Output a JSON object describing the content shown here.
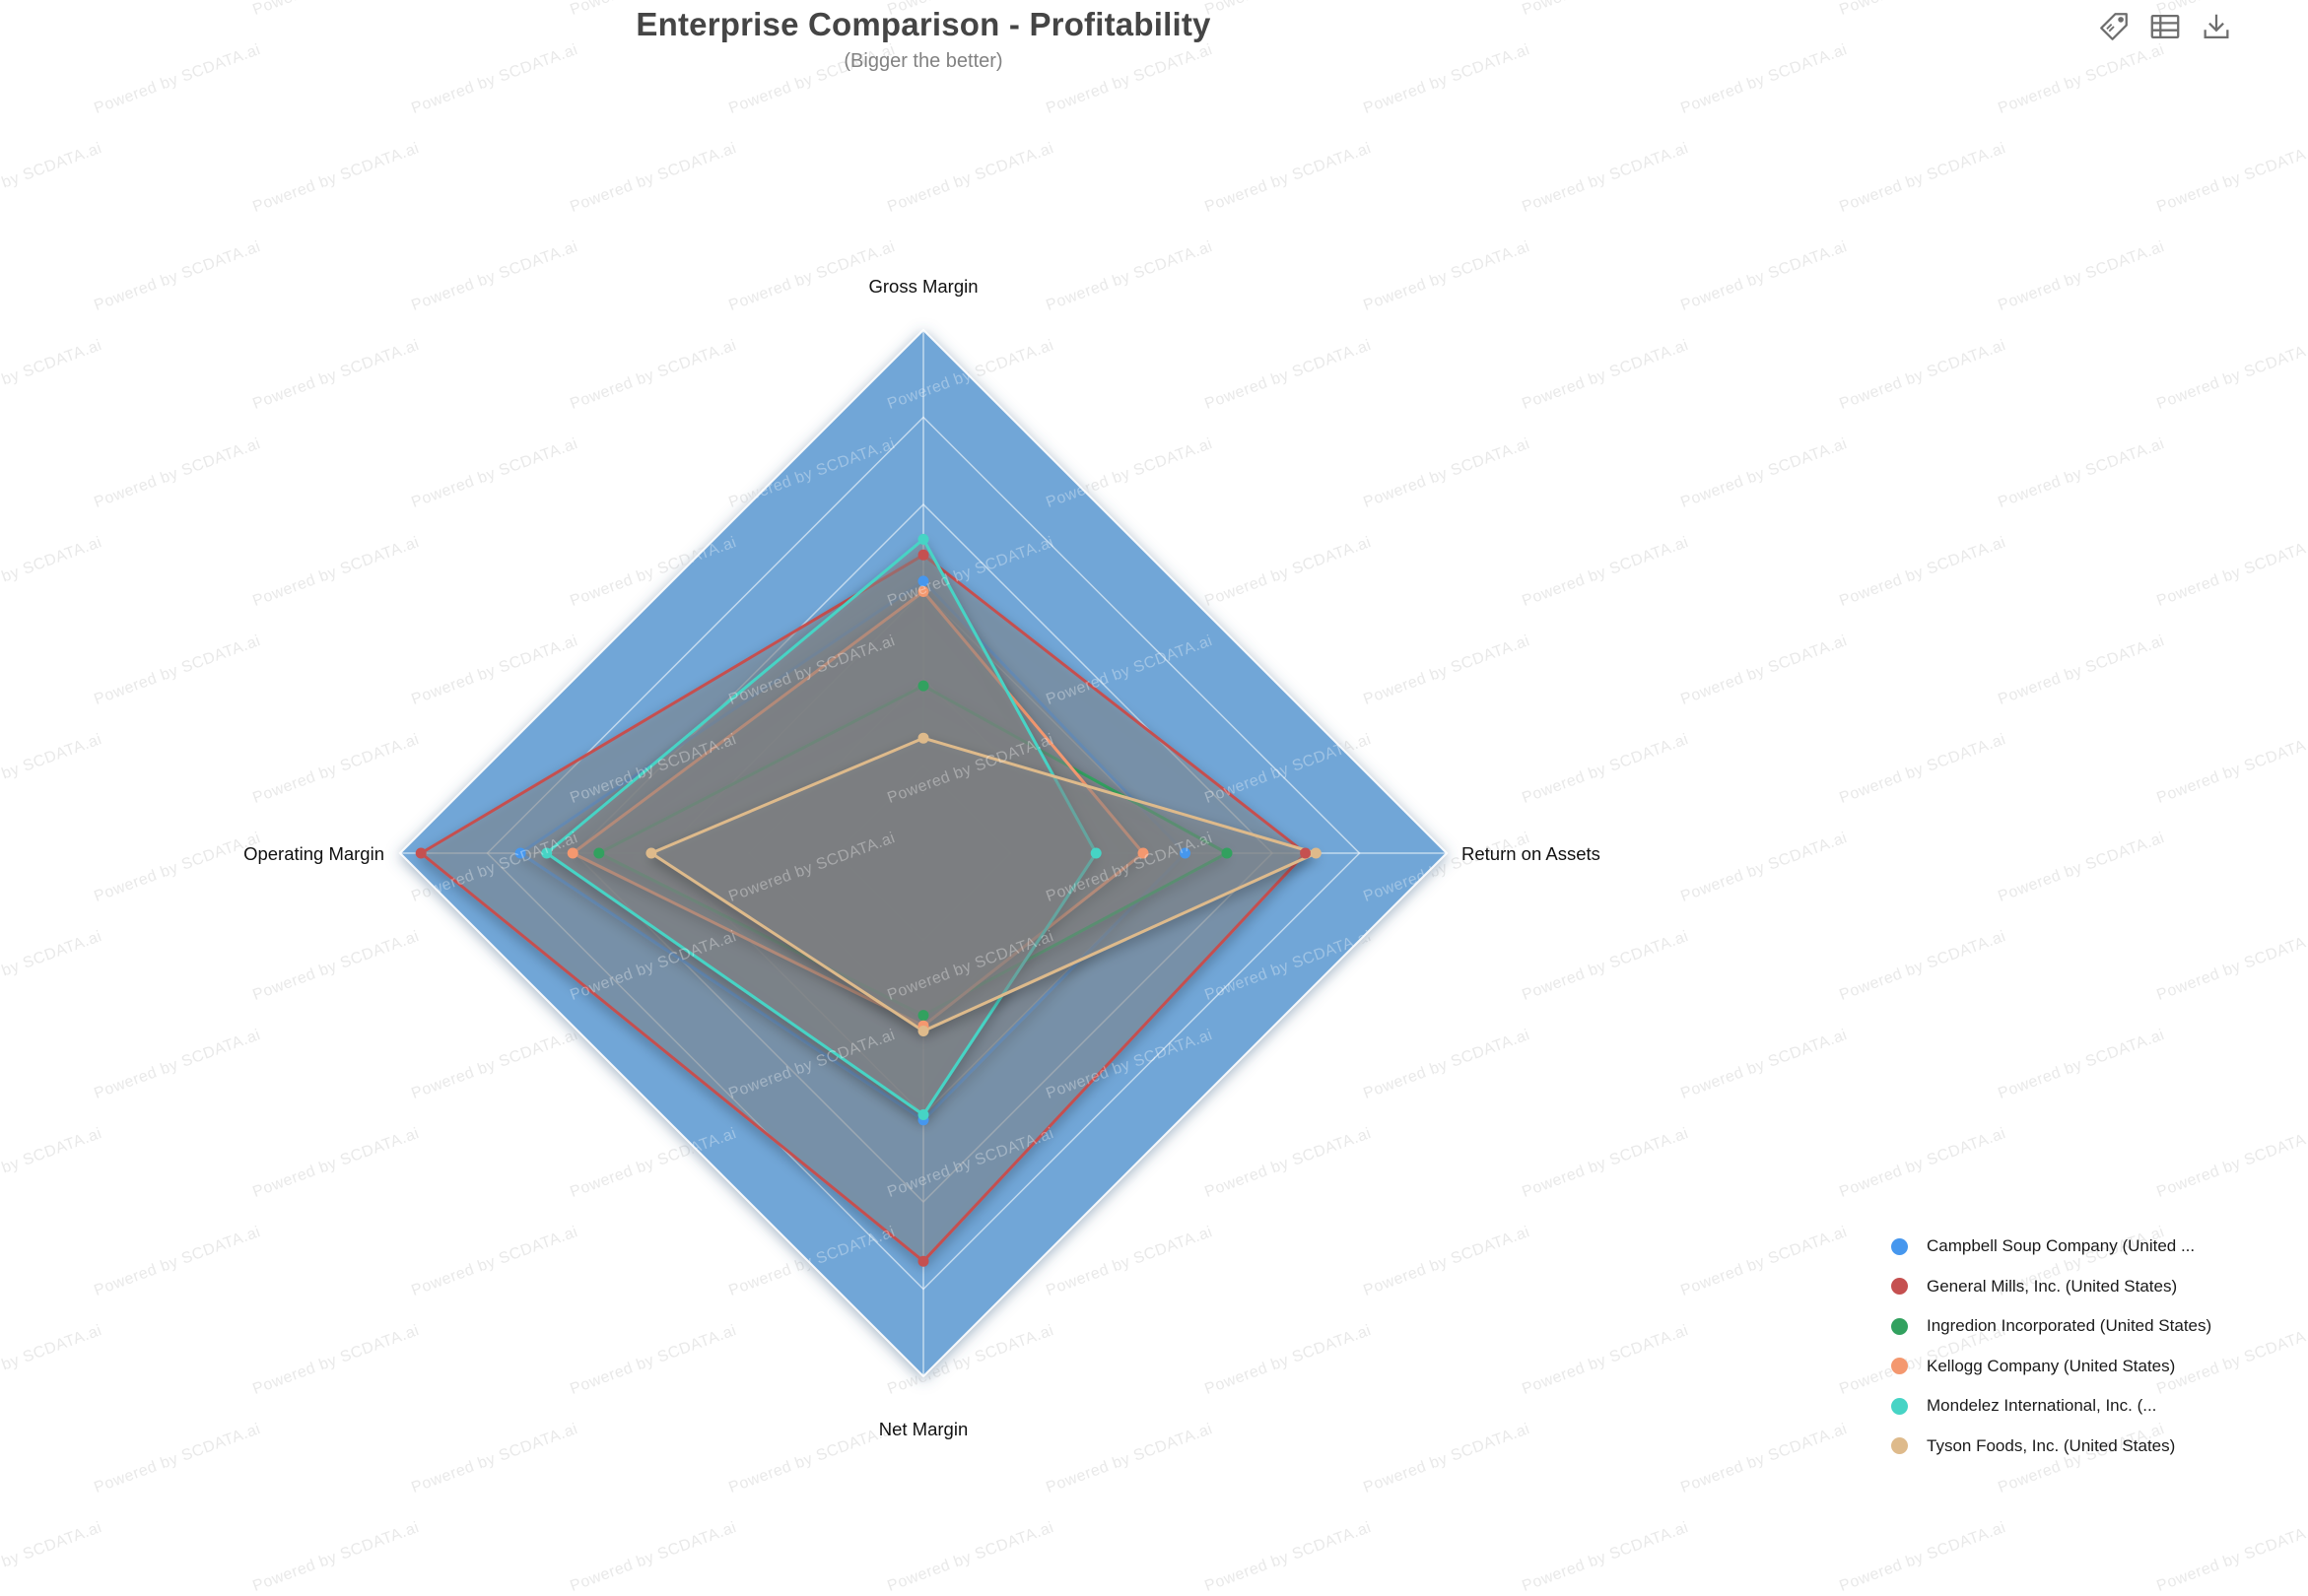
{
  "title": {
    "text": "Enterprise Comparison - Profitability",
    "subtitle": "(Bigger the better)"
  },
  "watermark": {
    "text": "Powered by SCDATA.ai"
  },
  "toolbox": {
    "icons": [
      {
        "name": "tag-icon"
      },
      {
        "name": "data-view-icon"
      },
      {
        "name": "download-icon"
      }
    ]
  },
  "chart_data": {
    "type": "radar",
    "title": "Enterprise Comparison - Profitability",
    "subtitle": "(Bigger the better)",
    "indicators": [
      "Gross Margin",
      "Return on Assets",
      "Net Margin",
      "Operating Margin"
    ],
    "value_scale": "fraction_of_axis_max (no numeric tick labels shown on chart)",
    "axis_range": [
      0,
      1
    ],
    "rings": 6,
    "grid_on": true,
    "legend_position": "bottom-right",
    "split_area_color": "#71A6D7",
    "grid_line_color": "rgba(255,255,255,0.58)",
    "series_fill_color": "rgba(135,138,140,0.45)",
    "series": [
      {
        "name": "Campbell Soup Company (United ...",
        "color": "#4697EE",
        "values": [
          0.52,
          0.5,
          0.51,
          0.77
        ]
      },
      {
        "name": "General Mills, Inc. (United States)",
        "color": "#C55050",
        "values": [
          0.57,
          0.73,
          0.78,
          0.96
        ]
      },
      {
        "name": "Ingredion Incorporated (United States)",
        "color": "#32A15F",
        "values": [
          0.32,
          0.58,
          0.31,
          0.62
        ]
      },
      {
        "name": "Kellogg Company (United States)",
        "color": "#F4986F",
        "values": [
          0.5,
          0.42,
          0.33,
          0.67
        ]
      },
      {
        "name": "Mondelez International, Inc. (...",
        "color": "#46D4C5",
        "values": [
          0.6,
          0.33,
          0.5,
          0.72
        ]
      },
      {
        "name": "Tyson Foods, Inc. (United States)",
        "color": "#DEBA8B",
        "values": [
          0.22,
          0.75,
          0.34,
          0.52
        ]
      }
    ]
  }
}
